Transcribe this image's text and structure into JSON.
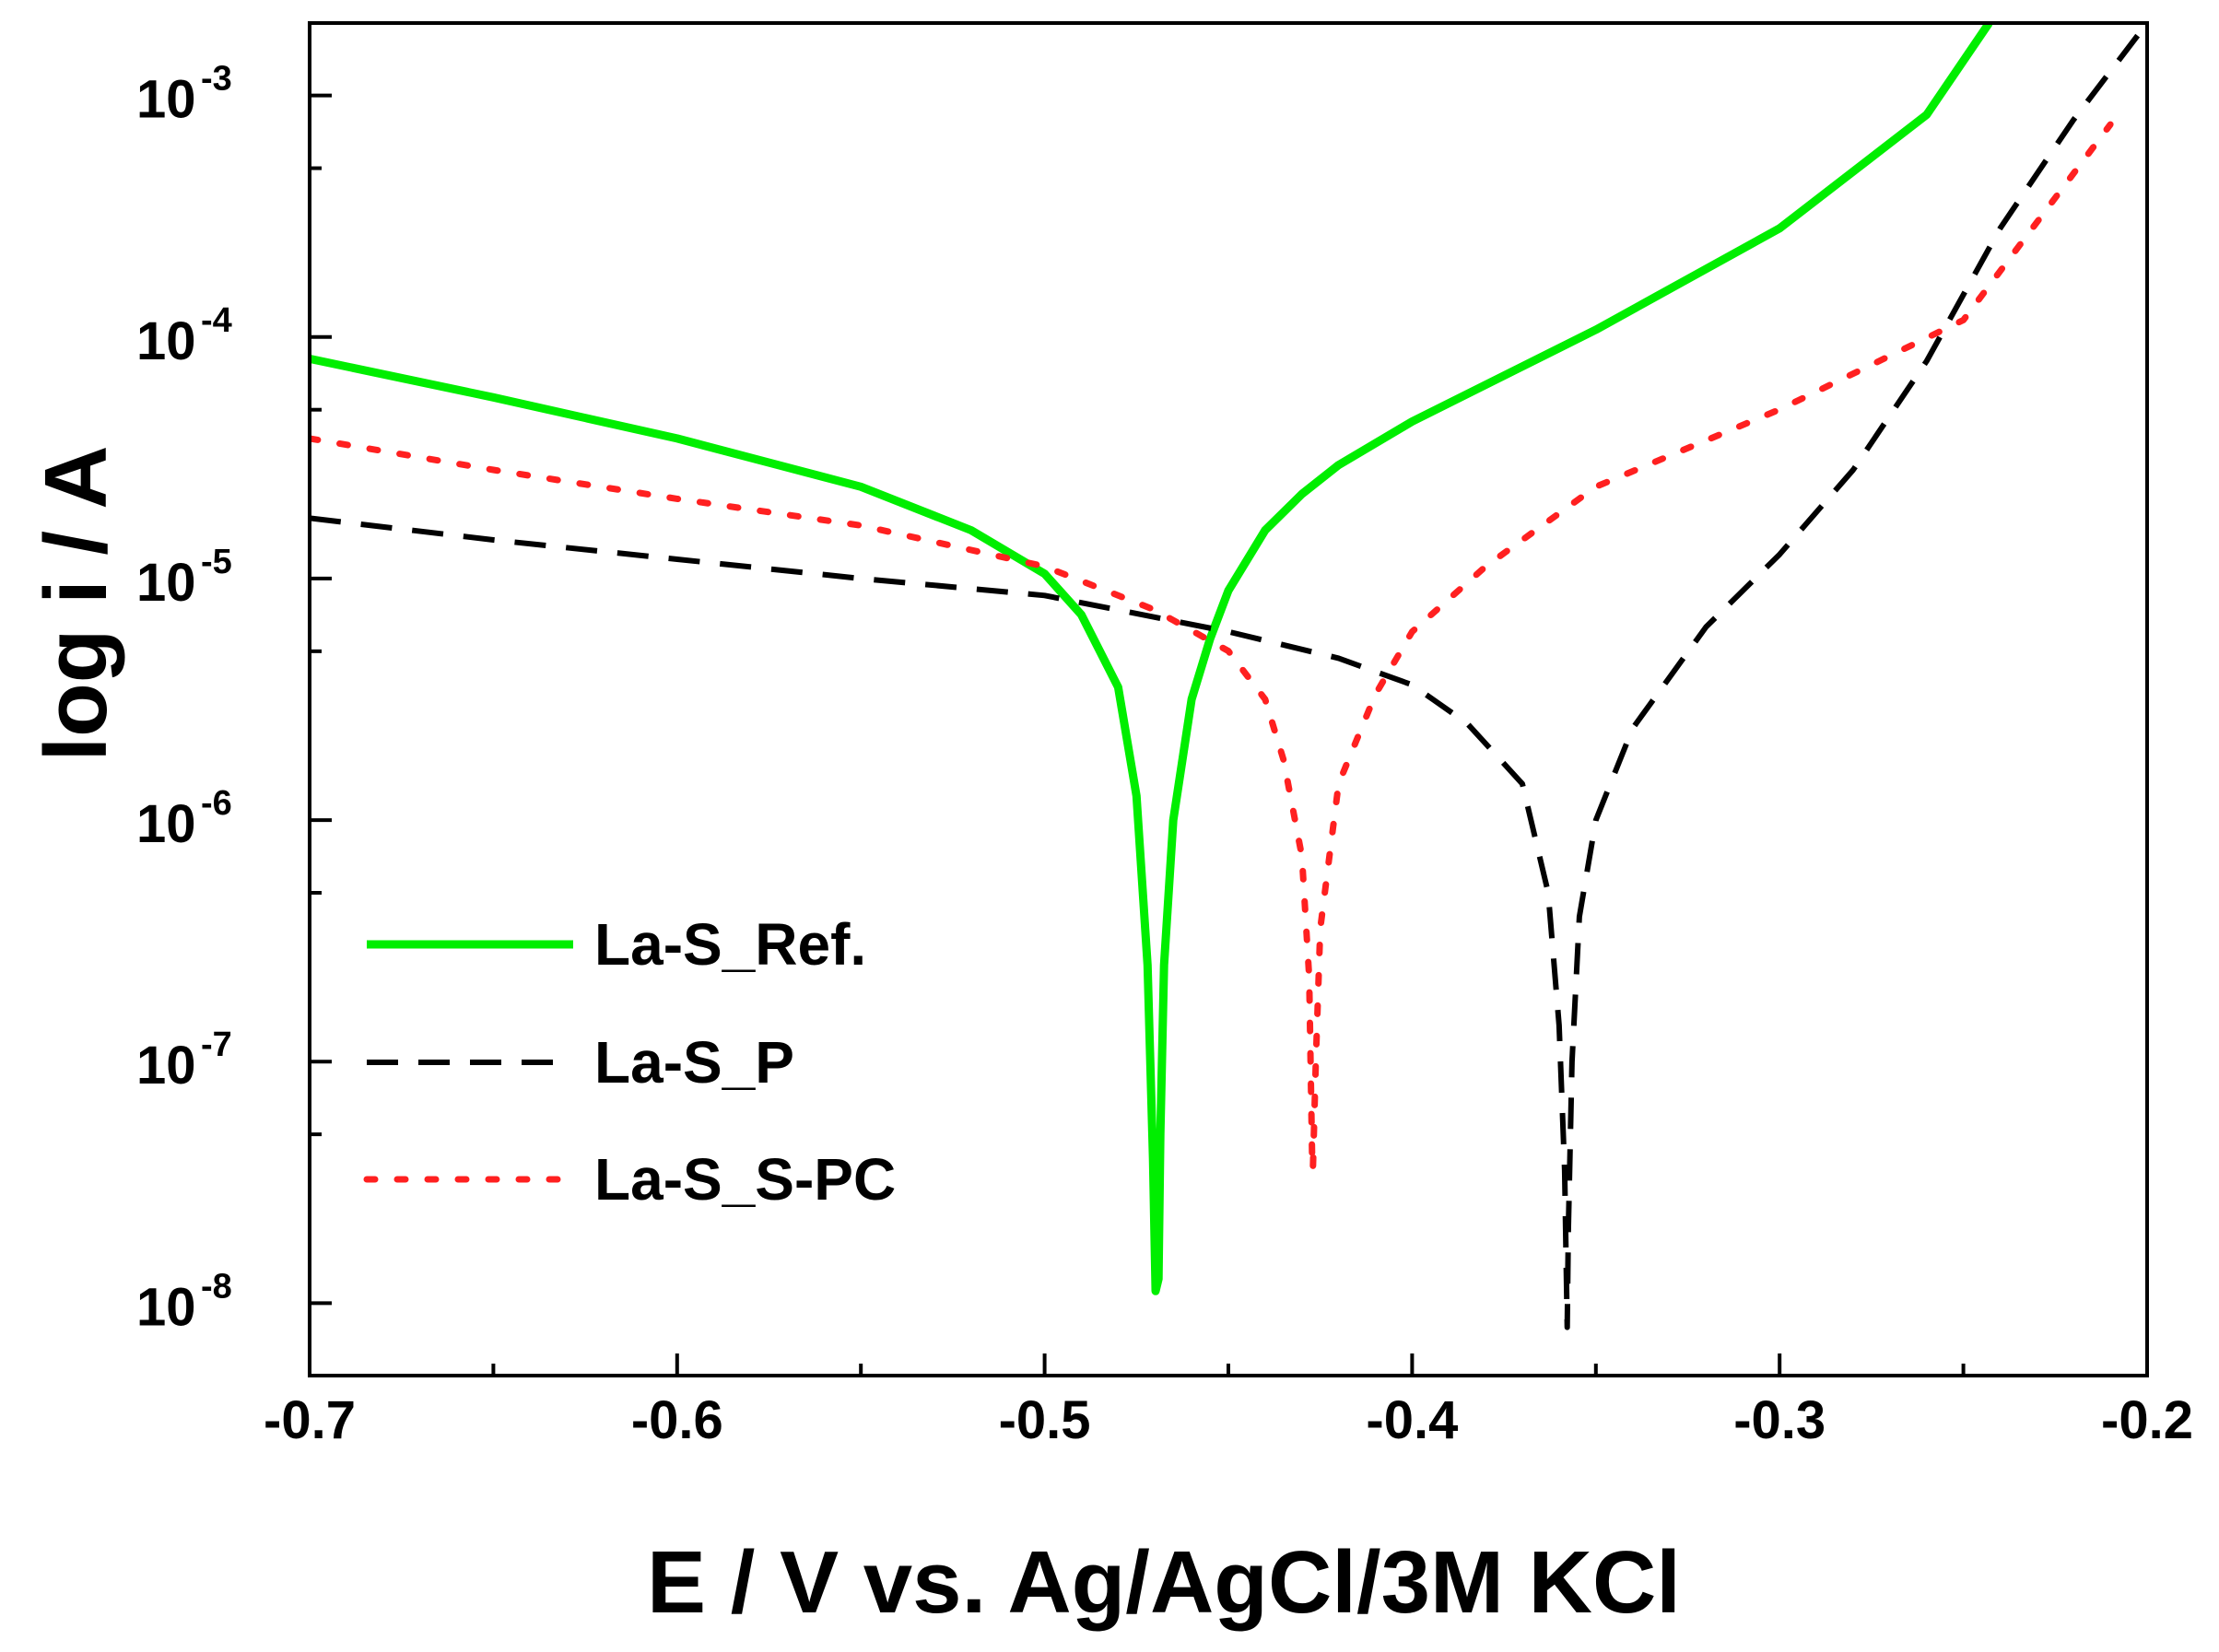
{
  "chart_data": {
    "type": "line",
    "title": "",
    "xlabel": "E / V vs. Ag/AgCl/3M KCl",
    "ylabel": "log i / A",
    "xlim": [
      -0.7,
      -0.2
    ],
    "ylim_log10": [
      -8.3,
      -2.7
    ],
    "x_ticks": [
      {
        "value": -0.7,
        "label": "-0.7"
      },
      {
        "value": -0.6,
        "label": "-0.6"
      },
      {
        "value": -0.5,
        "label": "-0.5"
      },
      {
        "value": -0.4,
        "label": "-0.4"
      },
      {
        "value": -0.3,
        "label": "-0.3"
      },
      {
        "value": -0.2,
        "label": "-0.2"
      }
    ],
    "y_ticks": [
      {
        "exp": -3,
        "base": "10",
        "sup": "-3"
      },
      {
        "exp": -4,
        "base": "10",
        "sup": "-4"
      },
      {
        "exp": -5,
        "base": "10",
        "sup": "-5"
      },
      {
        "exp": -6,
        "base": "10",
        "sup": "-6"
      },
      {
        "exp": -7,
        "base": "10",
        "sup": "-7"
      },
      {
        "exp": -8,
        "base": "10",
        "sup": "-8"
      }
    ],
    "legend_position": "bottom-left",
    "series": [
      {
        "name": "La-S_Ref.",
        "color": "#00ee00",
        "style": "solid",
        "points": [
          [
            -0.7,
            -4.09
          ],
          [
            -0.65,
            -4.25
          ],
          [
            -0.6,
            -4.42
          ],
          [
            -0.55,
            -4.62
          ],
          [
            -0.52,
            -4.8
          ],
          [
            -0.5,
            -4.98
          ],
          [
            -0.49,
            -5.15
          ],
          [
            -0.48,
            -5.45
          ],
          [
            -0.475,
            -5.9
          ],
          [
            -0.472,
            -6.6
          ],
          [
            -0.4705,
            -7.4
          ],
          [
            -0.4698,
            -7.95
          ],
          [
            -0.469,
            -7.9
          ],
          [
            -0.4685,
            -7.3
          ],
          [
            -0.4675,
            -6.6
          ],
          [
            -0.465,
            -6.0
          ],
          [
            -0.46,
            -5.5
          ],
          [
            -0.455,
            -5.25
          ],
          [
            -0.45,
            -5.05
          ],
          [
            -0.44,
            -4.8
          ],
          [
            -0.43,
            -4.65
          ],
          [
            -0.42,
            -4.53
          ],
          [
            -0.4,
            -4.35
          ],
          [
            -0.35,
            -3.97
          ],
          [
            -0.3,
            -3.55
          ],
          [
            -0.26,
            -3.08
          ],
          [
            -0.243,
            -2.7
          ]
        ]
      },
      {
        "name": "La-S_P",
        "color": "#000000",
        "style": "dashed",
        "points": [
          [
            -0.7,
            -4.75
          ],
          [
            -0.65,
            -4.84
          ],
          [
            -0.6,
            -4.92
          ],
          [
            -0.55,
            -5.0
          ],
          [
            -0.5,
            -5.07
          ],
          [
            -0.45,
            -5.22
          ],
          [
            -0.42,
            -5.33
          ],
          [
            -0.4,
            -5.44
          ],
          [
            -0.385,
            -5.6
          ],
          [
            -0.37,
            -5.85
          ],
          [
            -0.363,
            -6.3
          ],
          [
            -0.36,
            -6.85
          ],
          [
            -0.3585,
            -7.45
          ],
          [
            -0.3578,
            -8.1
          ],
          [
            -0.3575,
            -7.7
          ],
          [
            -0.3565,
            -7.0
          ],
          [
            -0.3545,
            -6.4
          ],
          [
            -0.35,
            -6.0
          ],
          [
            -0.34,
            -5.62
          ],
          [
            -0.32,
            -5.2
          ],
          [
            -0.3,
            -4.9
          ],
          [
            -0.28,
            -4.55
          ],
          [
            -0.26,
            -4.1
          ],
          [
            -0.24,
            -3.55
          ],
          [
            -0.22,
            -3.1
          ],
          [
            -0.2,
            -2.7
          ]
        ]
      },
      {
        "name": "La-S_S-PC",
        "color": "#ff2020",
        "style": "dotted",
        "points": [
          [
            -0.7,
            -4.42
          ],
          [
            -0.65,
            -4.55
          ],
          [
            -0.6,
            -4.67
          ],
          [
            -0.55,
            -4.78
          ],
          [
            -0.5,
            -4.95
          ],
          [
            -0.47,
            -5.13
          ],
          [
            -0.45,
            -5.3
          ],
          [
            -0.44,
            -5.5
          ],
          [
            -0.435,
            -5.75
          ],
          [
            -0.43,
            -6.15
          ],
          [
            -0.428,
            -6.65
          ],
          [
            -0.4272,
            -7.4
          ],
          [
            -0.427,
            -7.45
          ],
          [
            -0.4262,
            -7.0
          ],
          [
            -0.425,
            -6.45
          ],
          [
            -0.42,
            -5.85
          ],
          [
            -0.41,
            -5.48
          ],
          [
            -0.4,
            -5.22
          ],
          [
            -0.38,
            -4.95
          ],
          [
            -0.35,
            -4.62
          ],
          [
            -0.3,
            -4.3
          ],
          [
            -0.25,
            -3.93
          ],
          [
            -0.21,
            -3.12
          ]
        ]
      }
    ]
  }
}
